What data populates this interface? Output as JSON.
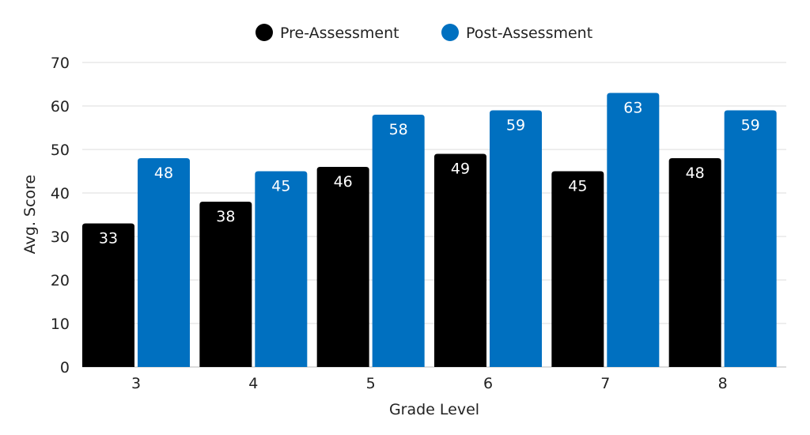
{
  "chart_data": {
    "type": "bar",
    "title": "",
    "xlabel": "Grade Level",
    "ylabel": "Avg. Score",
    "ylim": [
      0,
      70
    ],
    "yticks": [
      0,
      10,
      20,
      30,
      40,
      50,
      60,
      70
    ],
    "grid": true,
    "legend_position": "top",
    "categories": [
      "3",
      "4",
      "5",
      "6",
      "7",
      "8"
    ],
    "series": [
      {
        "name": "Pre-Assessment",
        "color": "#000000",
        "values": [
          33,
          38,
          46,
          49,
          45,
          48
        ]
      },
      {
        "name": "Post-Assessment",
        "color": "#0070C0",
        "values": [
          48,
          45,
          58,
          59,
          63,
          59
        ]
      }
    ],
    "data_labels": true
  }
}
